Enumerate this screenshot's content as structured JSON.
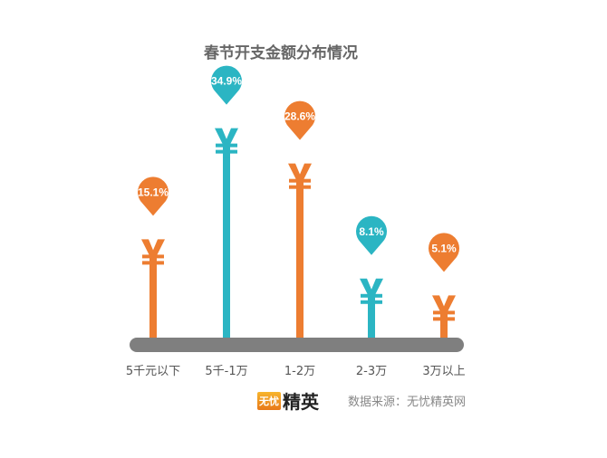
{
  "chart_data": {
    "type": "bar",
    "title": "春节开支金额分布情况",
    "categories": [
      "5千元以下",
      "5千-1万",
      "1-2万",
      "2-3万",
      "3万以上"
    ],
    "values": [
      15.1,
      34.9,
      28.6,
      8.1,
      5.1
    ],
    "value_labels": [
      "15.1%",
      "34.9%",
      "28.6%",
      "8.1%",
      "5.1%"
    ],
    "unit": "%",
    "marker_icon": "yen-sign-icon",
    "colors": [
      "#ED7D31",
      "#2BB5C3",
      "#ED7D31",
      "#2BB5C3",
      "#ED7D31"
    ],
    "baseline_color": "#7F7F7F",
    "grid": false
  },
  "footer": {
    "logo_small": "无忧",
    "logo_large": "精英",
    "source": "数据来源：无忧精英网"
  }
}
